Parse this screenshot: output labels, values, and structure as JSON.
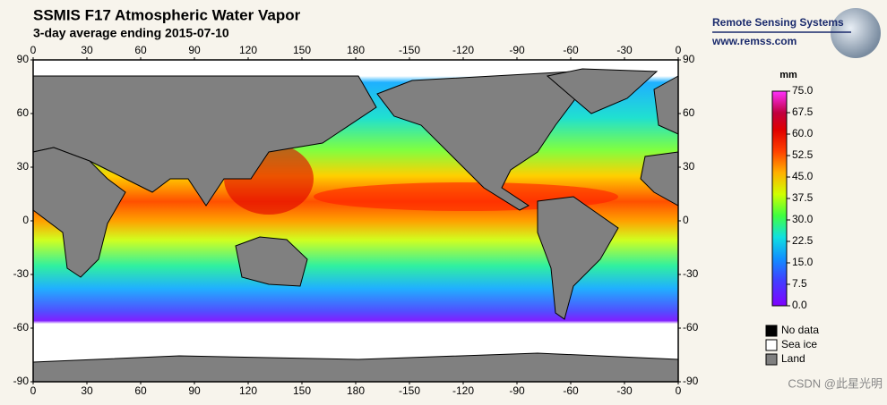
{
  "header": {
    "title": "SSMIS F17 Atmospheric Water Vapor",
    "subtitle": "3-day average ending 2015-07-10"
  },
  "logo": {
    "name": "Remote Sensing Systems",
    "url": "www.remss.com"
  },
  "map": {
    "longitude_labels": [
      0,
      30,
      60,
      90,
      120,
      150,
      180,
      -150,
      -120,
      -90,
      -60,
      -30,
      0
    ],
    "latitude_labels": [
      90,
      60,
      30,
      0,
      -30,
      -60,
      -90
    ]
  },
  "colorbar": {
    "unit": "mm",
    "range": [
      0,
      75
    ],
    "ticks": [
      {
        "value": 75,
        "label": "75.0"
      },
      {
        "value": 67.5,
        "label": "67.5"
      },
      {
        "value": 60,
        "label": "60.0"
      },
      {
        "value": 52.5,
        "label": "52.5"
      },
      {
        "value": 45,
        "label": "45.0"
      },
      {
        "value": 37.5,
        "label": "37.5"
      },
      {
        "value": 30,
        "label": "30.0"
      },
      {
        "value": 22.5,
        "label": "22.5"
      },
      {
        "value": 15,
        "label": "15.0"
      },
      {
        "value": 7.5,
        "label": "7.5"
      },
      {
        "value": 0,
        "label": "0.0"
      }
    ]
  },
  "legend": [
    "No data",
    "Sea ice",
    "Land"
  ],
  "watermark": "CSDN @此星光明"
}
